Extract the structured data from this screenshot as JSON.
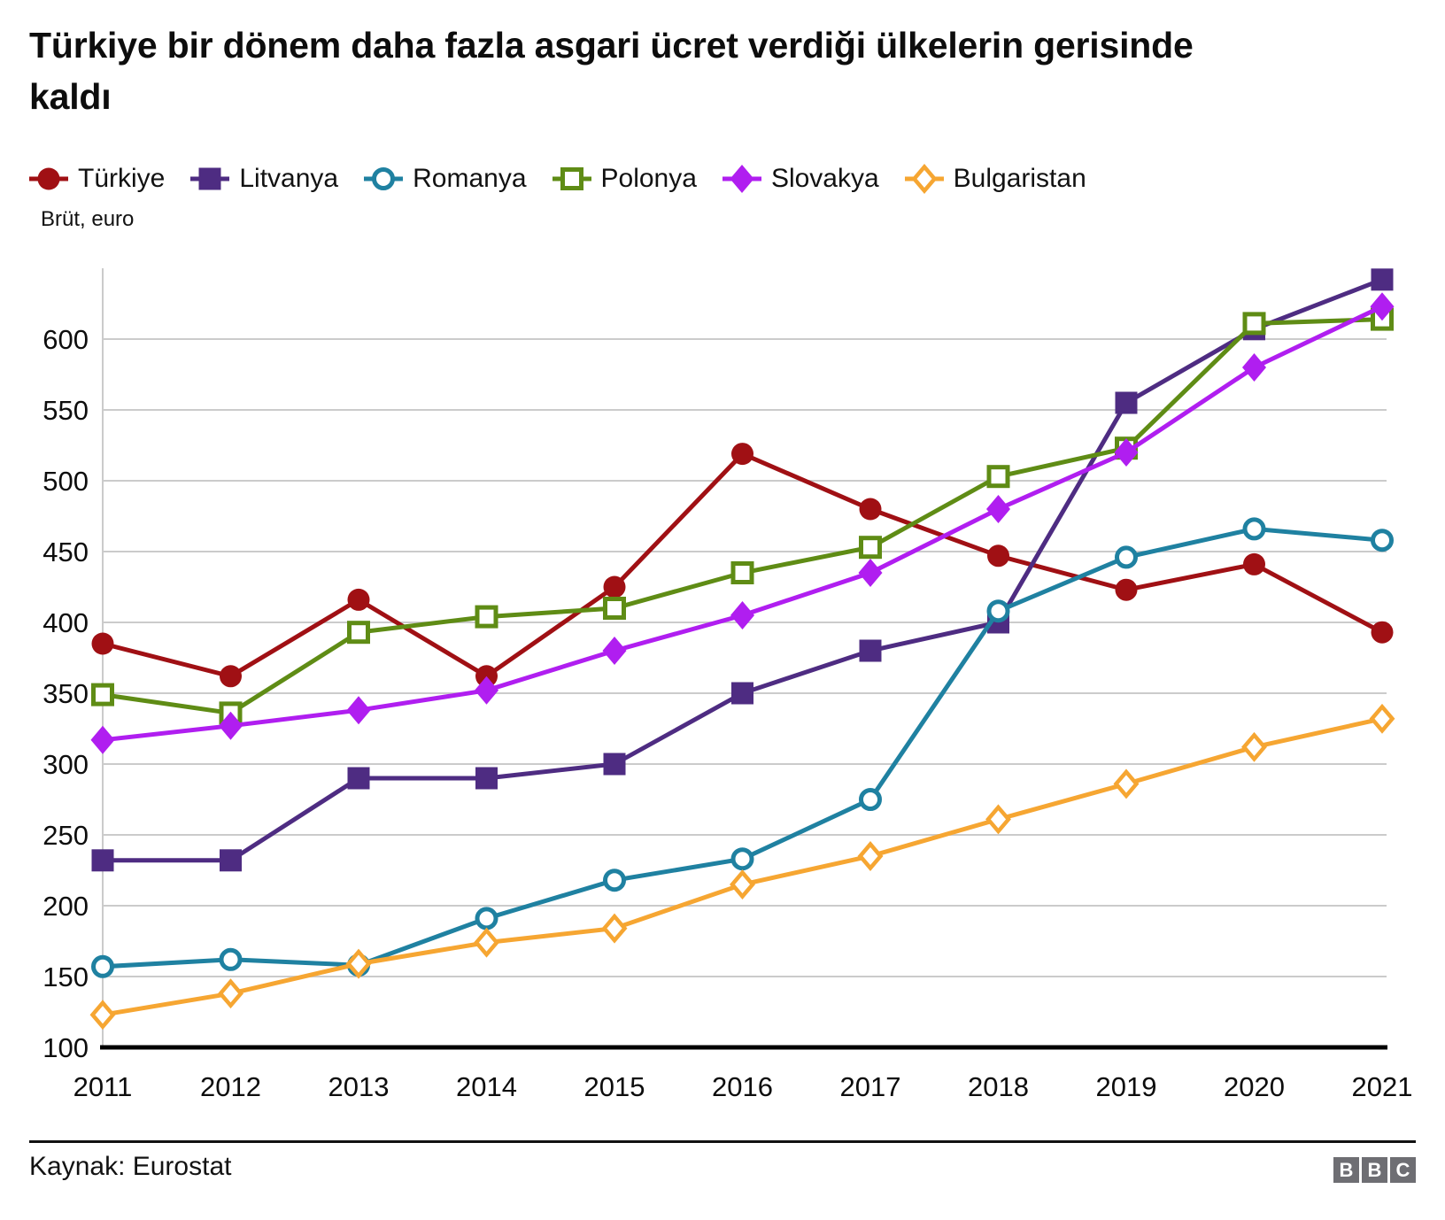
{
  "title": "Türkiye bir dönem daha fazla asgari ücret verdiği ülkelerin gerisinde kaldı",
  "title_lines": [
    "Türkiye bir dönem daha fazla asgari ücret verdiği ülkelerin gerisinde",
    "kaldı"
  ],
  "axis_note": "Brüt, euro",
  "source": "Kaynak: Eurostat",
  "logo_letters": [
    "B",
    "B",
    "C"
  ],
  "chart_data": {
    "type": "line",
    "x": [
      2011,
      2012,
      2013,
      2014,
      2015,
      2016,
      2017,
      2018,
      2019,
      2020,
      2021
    ],
    "series": [
      {
        "name": "Türkiye",
        "color": "#a01014",
        "marker": "circle-filled",
        "values": [
          385,
          362,
          416,
          362,
          425,
          519,
          480,
          447,
          423,
          441,
          393
        ]
      },
      {
        "name": "Litvanya",
        "color": "#4e2c82",
        "marker": "square-filled",
        "values": [
          232,
          232,
          290,
          290,
          300,
          350,
          380,
          400,
          555,
          607,
          642
        ]
      },
      {
        "name": "Romanya",
        "color": "#1f81a1",
        "marker": "circle-open",
        "values": [
          157,
          162,
          158,
          191,
          218,
          233,
          275,
          408,
          446,
          466,
          458
        ]
      },
      {
        "name": "Polonya",
        "color": "#5f8c15",
        "marker": "square-open",
        "values": [
          349,
          336,
          393,
          404,
          410,
          435,
          453,
          503,
          523,
          611,
          614
        ]
      },
      {
        "name": "Slovakya",
        "color": "#b01ef0",
        "marker": "diamond-filled",
        "values": [
          317,
          327,
          338,
          352,
          380,
          405,
          435,
          480,
          520,
          580,
          623
        ]
      },
      {
        "name": "Bulgaristan",
        "color": "#f6a632",
        "marker": "diamond-open",
        "values": [
          123,
          138,
          159,
          174,
          184,
          215,
          235,
          261,
          286,
          312,
          332
        ]
      }
    ],
    "ylabel": "Brüt, euro",
    "ylim": [
      100,
      650
    ],
    "yticks": [
      100,
      150,
      200,
      250,
      300,
      350,
      400,
      450,
      500,
      550,
      600
    ],
    "grid": true,
    "grid_color": "#cbcbcb",
    "axis_color": "#000000",
    "legend_position": "top"
  }
}
